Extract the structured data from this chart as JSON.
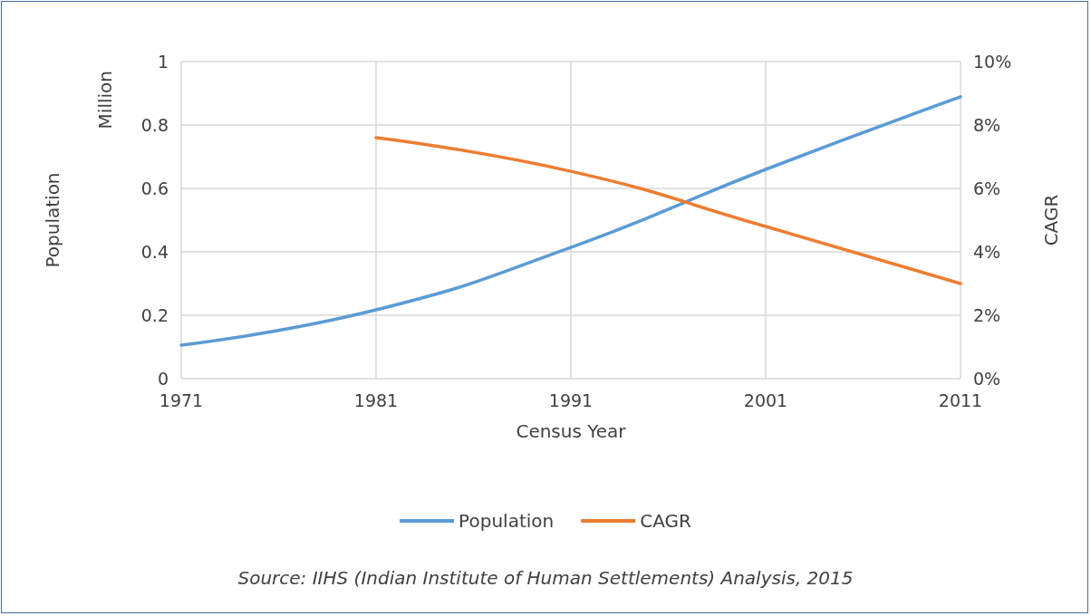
{
  "chart_data": {
    "type": "line",
    "xlabel": "Census Year",
    "ylabel": "Population",
    "y2label": "CAGR",
    "x": [
      1971,
      1981,
      1991,
      2001,
      2011
    ],
    "series": [
      {
        "name": "Population",
        "color": "#5b9bd5",
        "values": [
          0.106,
          0.217,
          0.414,
          0.66,
          0.889
        ]
      },
      {
        "name": "CAGR",
        "color": "#ed7d31",
        "axis": "y2",
        "values": [
          null,
          7.6,
          6.54,
          4.8,
          3.0
        ]
      }
    ],
    "xlim": [
      1971,
      2011
    ],
    "xticks": [
      1971,
      1981,
      1991,
      2001,
      2011
    ],
    "ylim": [
      0,
      1
    ],
    "yticks": [
      0,
      0.2,
      0.4,
      0.6,
      0.8,
      1
    ],
    "y2lim": [
      0,
      10
    ],
    "y2ticks": [
      {
        "value": 0,
        "label": "0%"
      },
      {
        "value": 2,
        "label": "2%"
      },
      {
        "value": 4,
        "label": "4%"
      },
      {
        "value": 6,
        "label": "6%"
      },
      {
        "value": 8,
        "label": "8%"
      },
      {
        "value": 10,
        "label": "10%"
      }
    ],
    "grid": true,
    "legend": "bottom",
    "marker": "none",
    "line_style": "solid",
    "annotations": [
      "Million",
      "Source: IIHS (Indian Institute of Human Settlements) Analysis, 2015"
    ]
  }
}
